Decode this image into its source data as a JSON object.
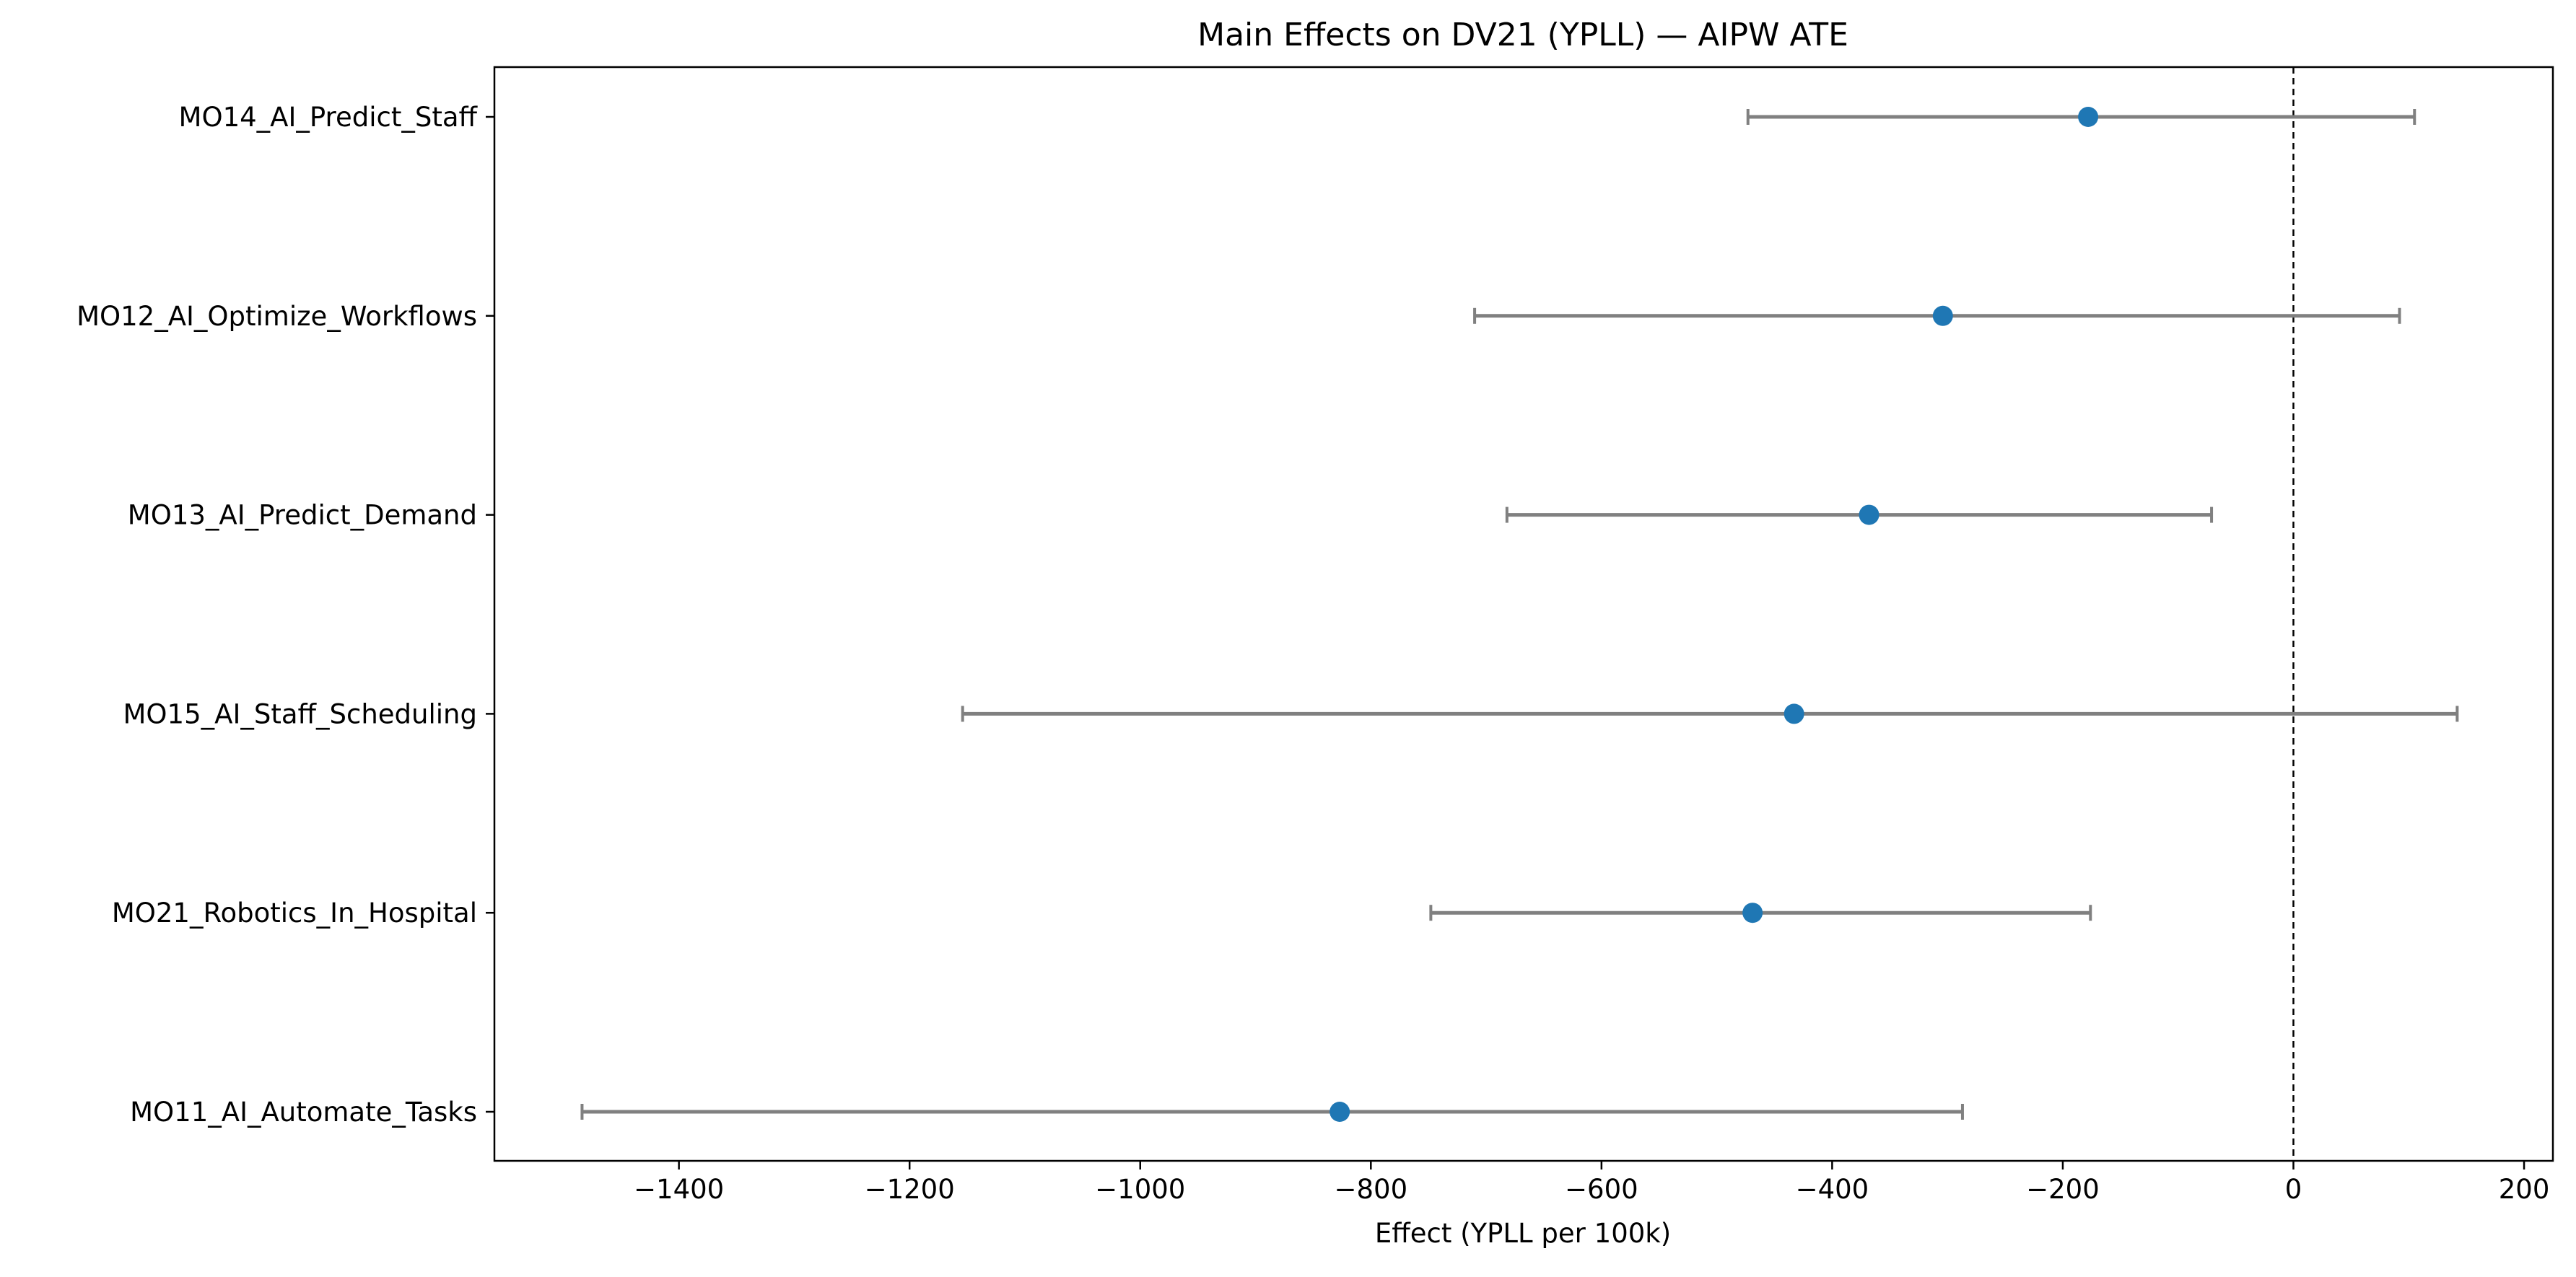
{
  "chart_data": {
    "type": "scatter",
    "subtype": "forest-plot",
    "title": "Main Effects on DV21 (YPLL) — AIPW ATE",
    "xlabel": "Effect (YPLL per 100k)",
    "ylabel": "",
    "xlim": [
      -1560,
      225
    ],
    "xticks": [
      -1400,
      -1200,
      -1000,
      -800,
      -600,
      -400,
      -200,
      0,
      200
    ],
    "xtick_labels": [
      "−1400",
      "−1200",
      "−1000",
      "−800",
      "−600",
      "−400",
      "−200",
      "0",
      "200"
    ],
    "reference_line": {
      "x": 0,
      "style": "dashed"
    },
    "grid": false,
    "legend": "none",
    "categories": [
      "MO14_AI_Predict_Staff",
      "MO12_AI_Optimize_Workflows",
      "MO13_AI_Predict_Demand",
      "MO15_AI_Staff_Scheduling",
      "MO21_Robotics_In_Hospital",
      "MO11_AI_Automate_Tasks"
    ],
    "estimates": [
      -178,
      -304,
      -368,
      -433,
      -469,
      -827
    ],
    "ci_lower": [
      -473,
      -710,
      -682,
      -1154,
      -748,
      -1484
    ],
    "ci_upper": [
      105,
      92,
      -71,
      142,
      -176,
      -287
    ],
    "colors": {
      "point": "#1f77b4",
      "errorbar": "#808080",
      "reference": "#000000"
    }
  }
}
